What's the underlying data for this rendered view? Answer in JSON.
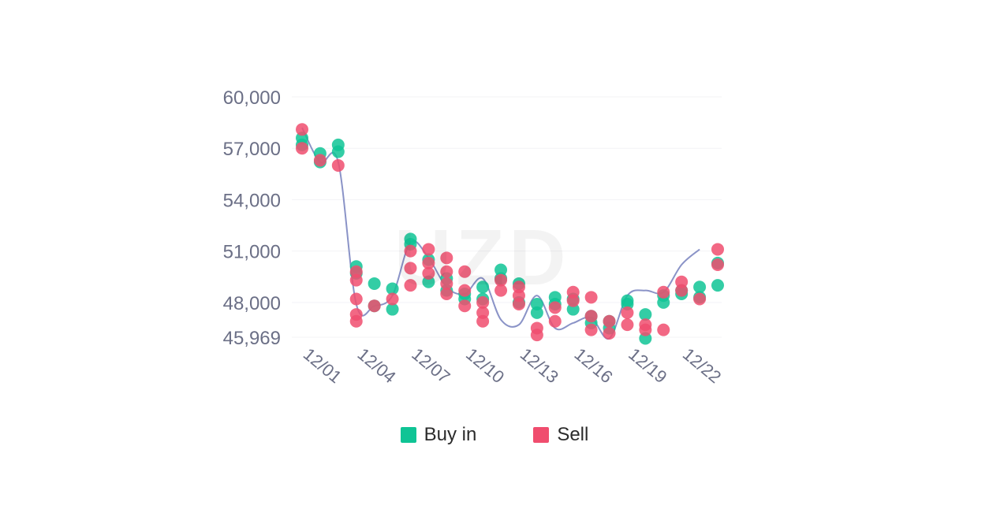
{
  "watermark": "UZD",
  "legend": {
    "buy_label": "Buy in",
    "sell_label": "Sell",
    "buy_color": "#0fc495",
    "sell_color": "#f04d6e"
  },
  "chart_data": {
    "type": "scatter",
    "title": "",
    "xlabel": "",
    "ylabel": "",
    "ylim": [
      45969,
      60000
    ],
    "yticks": [
      "60,000",
      "57,000",
      "54,000",
      "51,000",
      "48,000",
      "45,969"
    ],
    "ytick_values": [
      60000,
      57000,
      54000,
      51000,
      48000,
      45969
    ],
    "xticks": [
      "12/01",
      "12/04",
      "12/07",
      "12/10",
      "12/13",
      "12/16",
      "12/19",
      "12/22"
    ],
    "xtick_values": [
      "2023-12-01",
      "2023-12-04",
      "2023-12-07",
      "2023-12-10",
      "2023-12-13",
      "2023-12-16",
      "2023-12-19",
      "2023-12-22"
    ],
    "line_color": "#8a93c7",
    "line": {
      "x": [
        "2023-12-01",
        "2023-12-02",
        "2023-12-03",
        "2023-12-04",
        "2023-12-05",
        "2023-12-06",
        "2023-12-07",
        "2023-12-08",
        "2023-12-09",
        "2023-12-10",
        "2023-12-11",
        "2023-12-12",
        "2023-12-13",
        "2023-12-14",
        "2023-12-15",
        "2023-12-16",
        "2023-12-17",
        "2023-12-18",
        "2023-12-19",
        "2023-12-20",
        "2023-12-21",
        "2023-12-22",
        "2023-12-23"
      ],
      "y": [
        58200,
        56200,
        56200,
        47900,
        47800,
        48400,
        51500,
        50600,
        48900,
        48500,
        49400,
        47000,
        46700,
        48400,
        46500,
        46800,
        47100,
        45900,
        48400,
        48700,
        48600,
        50200,
        51100
      ]
    },
    "series": [
      {
        "name": "Buy in",
        "color": "#0fc495",
        "points": [
          {
            "x": "2023-12-01",
            "y": 57600
          },
          {
            "x": "2023-12-01",
            "y": 57200
          },
          {
            "x": "2023-12-02",
            "y": 56700
          },
          {
            "x": "2023-12-02",
            "y": 56200
          },
          {
            "x": "2023-12-03",
            "y": 57200
          },
          {
            "x": "2023-12-03",
            "y": 56800
          },
          {
            "x": "2023-12-04",
            "y": 50100
          },
          {
            "x": "2023-12-04",
            "y": 49700
          },
          {
            "x": "2023-12-05",
            "y": 49100
          },
          {
            "x": "2023-12-05",
            "y": 47800
          },
          {
            "x": "2023-12-06",
            "y": 48800
          },
          {
            "x": "2023-12-06",
            "y": 47600
          },
          {
            "x": "2023-12-07",
            "y": 51700
          },
          {
            "x": "2023-12-07",
            "y": 51400
          },
          {
            "x": "2023-12-08",
            "y": 50500
          },
          {
            "x": "2023-12-08",
            "y": 49200
          },
          {
            "x": "2023-12-09",
            "y": 49400
          },
          {
            "x": "2023-12-09",
            "y": 48700
          },
          {
            "x": "2023-12-10",
            "y": 48500
          },
          {
            "x": "2023-12-10",
            "y": 48200
          },
          {
            "x": "2023-12-11",
            "y": 48900
          },
          {
            "x": "2023-12-11",
            "y": 48200
          },
          {
            "x": "2023-12-12",
            "y": 49900
          },
          {
            "x": "2023-12-12",
            "y": 49400
          },
          {
            "x": "2023-12-13",
            "y": 49100
          },
          {
            "x": "2023-12-13",
            "y": 48000
          },
          {
            "x": "2023-12-14",
            "y": 47900
          },
          {
            "x": "2023-12-14",
            "y": 47400
          },
          {
            "x": "2023-12-15",
            "y": 48300
          },
          {
            "x": "2023-12-15",
            "y": 47900
          },
          {
            "x": "2023-12-16",
            "y": 48200
          },
          {
            "x": "2023-12-16",
            "y": 47600
          },
          {
            "x": "2023-12-17",
            "y": 47200
          },
          {
            "x": "2023-12-17",
            "y": 46800
          },
          {
            "x": "2023-12-18",
            "y": 46900
          },
          {
            "x": "2023-12-18",
            "y": 46500
          },
          {
            "x": "2023-12-19",
            "y": 48100
          },
          {
            "x": "2023-12-19",
            "y": 47900
          },
          {
            "x": "2023-12-20",
            "y": 47300
          },
          {
            "x": "2023-12-20",
            "y": 45900
          },
          {
            "x": "2023-12-21",
            "y": 48400
          },
          {
            "x": "2023-12-21",
            "y": 48000
          },
          {
            "x": "2023-12-22",
            "y": 48500
          },
          {
            "x": "2023-12-22",
            "y": 48700
          },
          {
            "x": "2023-12-23",
            "y": 48900
          },
          {
            "x": "2023-12-23",
            "y": 48300
          },
          {
            "x": "2023-12-24",
            "y": 49000
          },
          {
            "x": "2023-12-24",
            "y": 50300
          }
        ]
      },
      {
        "name": "Sell",
        "color": "#f04d6e",
        "points": [
          {
            "x": "2023-12-01",
            "y": 58100
          },
          {
            "x": "2023-12-01",
            "y": 57000
          },
          {
            "x": "2023-12-02",
            "y": 56300
          },
          {
            "x": "2023-12-03",
            "y": 56000
          },
          {
            "x": "2023-12-04",
            "y": 49800
          },
          {
            "x": "2023-12-04",
            "y": 49300
          },
          {
            "x": "2023-12-04",
            "y": 48200
          },
          {
            "x": "2023-12-04",
            "y": 47300
          },
          {
            "x": "2023-12-04",
            "y": 46900
          },
          {
            "x": "2023-12-05",
            "y": 47800
          },
          {
            "x": "2023-12-06",
            "y": 48200
          },
          {
            "x": "2023-12-07",
            "y": 51000
          },
          {
            "x": "2023-12-07",
            "y": 50000
          },
          {
            "x": "2023-12-07",
            "y": 49000
          },
          {
            "x": "2023-12-08",
            "y": 51100
          },
          {
            "x": "2023-12-08",
            "y": 50300
          },
          {
            "x": "2023-12-08",
            "y": 49700
          },
          {
            "x": "2023-12-09",
            "y": 50600
          },
          {
            "x": "2023-12-09",
            "y": 49800
          },
          {
            "x": "2023-12-09",
            "y": 49100
          },
          {
            "x": "2023-12-09",
            "y": 48500
          },
          {
            "x": "2023-12-10",
            "y": 49800
          },
          {
            "x": "2023-12-10",
            "y": 48700
          },
          {
            "x": "2023-12-10",
            "y": 47800
          },
          {
            "x": "2023-12-11",
            "y": 48000
          },
          {
            "x": "2023-12-11",
            "y": 47400
          },
          {
            "x": "2023-12-11",
            "y": 46900
          },
          {
            "x": "2023-12-12",
            "y": 49300
          },
          {
            "x": "2023-12-12",
            "y": 48700
          },
          {
            "x": "2023-12-13",
            "y": 48900
          },
          {
            "x": "2023-12-13",
            "y": 48400
          },
          {
            "x": "2023-12-13",
            "y": 47900
          },
          {
            "x": "2023-12-14",
            "y": 46500
          },
          {
            "x": "2023-12-14",
            "y": 46100
          },
          {
            "x": "2023-12-15",
            "y": 47700
          },
          {
            "x": "2023-12-15",
            "y": 46900
          },
          {
            "x": "2023-12-16",
            "y": 48600
          },
          {
            "x": "2023-12-16",
            "y": 48100
          },
          {
            "x": "2023-12-17",
            "y": 48300
          },
          {
            "x": "2023-12-17",
            "y": 47200
          },
          {
            "x": "2023-12-17",
            "y": 46400
          },
          {
            "x": "2023-12-18",
            "y": 46900
          },
          {
            "x": "2023-12-18",
            "y": 46200
          },
          {
            "x": "2023-12-19",
            "y": 47400
          },
          {
            "x": "2023-12-19",
            "y": 46700
          },
          {
            "x": "2023-12-20",
            "y": 46700
          },
          {
            "x": "2023-12-20",
            "y": 46400
          },
          {
            "x": "2023-12-21",
            "y": 46400
          },
          {
            "x": "2023-12-21",
            "y": 48600
          },
          {
            "x": "2023-12-22",
            "y": 49200
          },
          {
            "x": "2023-12-22",
            "y": 48700
          },
          {
            "x": "2023-12-23",
            "y": 48200
          },
          {
            "x": "2023-12-24",
            "y": 51100
          },
          {
            "x": "2023-12-24",
            "y": 50200
          }
        ]
      }
    ]
  }
}
